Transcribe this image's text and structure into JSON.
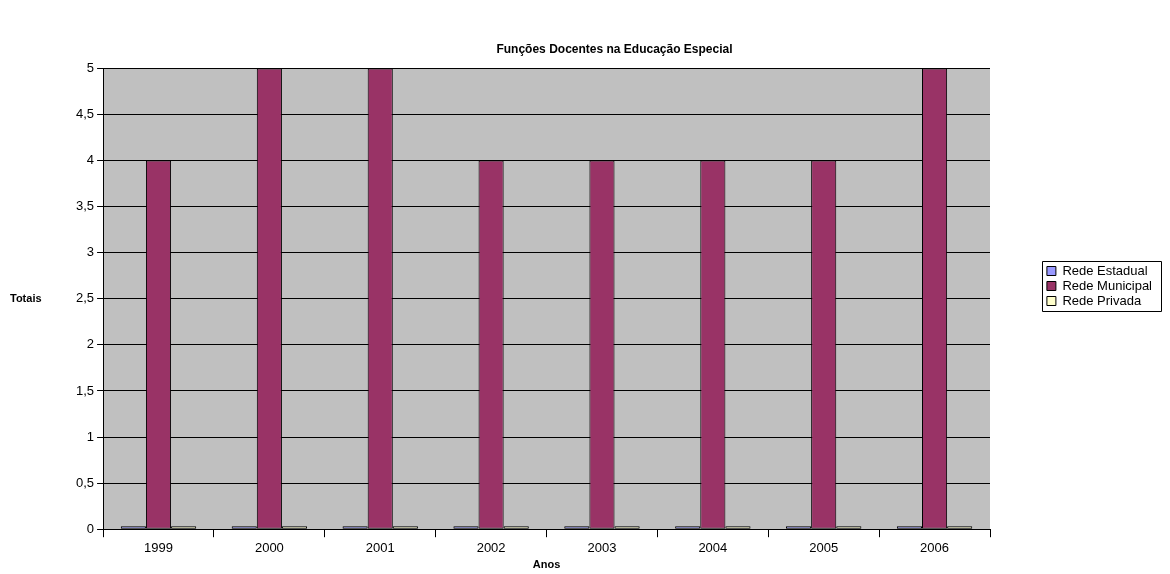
{
  "chart_data": {
    "type": "bar",
    "title": "Funções Docentes na Educação Especial",
    "xlabel": "Anos",
    "ylabel": "Totais",
    "categories": [
      "1999",
      "2000",
      "2001",
      "2002",
      "2003",
      "2004",
      "2005",
      "2006"
    ],
    "series": [
      {
        "name": "Rede Estadual",
        "color": "#9999ff",
        "values": [
          0,
          0,
          0,
          0,
          0,
          0,
          0,
          0
        ]
      },
      {
        "name": "Rede Municipal",
        "color": "#993366",
        "values": [
          4,
          5,
          5,
          4,
          4,
          4,
          4,
          5
        ]
      },
      {
        "name": "Rede Privada",
        "color": "#ffffcc",
        "values": [
          0,
          0,
          0,
          0,
          0,
          0,
          0,
          0
        ]
      }
    ],
    "ylim": [
      0,
      5
    ],
    "yticks": [
      0,
      {
        "value": 0.5,
        "label": "0,5"
      },
      1,
      {
        "value": 1.5,
        "label": "1,5"
      },
      2,
      {
        "value": 2.5,
        "label": "2,5"
      },
      3,
      {
        "value": 3.5,
        "label": "3,5"
      },
      4,
      {
        "value": 4.5,
        "label": "4,5"
      },
      5
    ],
    "grid": "y",
    "legend": "right"
  }
}
